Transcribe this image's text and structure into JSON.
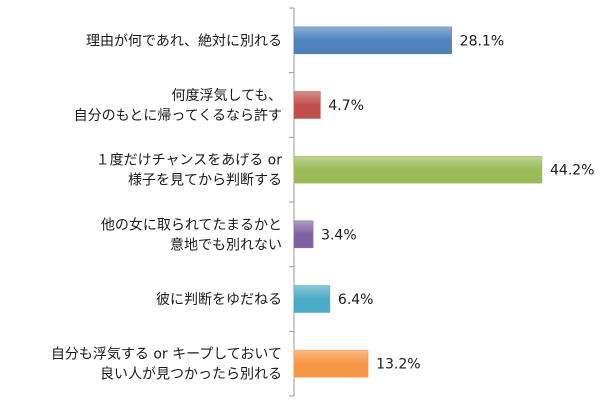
{
  "chart_data": {
    "type": "bar",
    "orientation": "horizontal",
    "title": "",
    "xlabel": "",
    "ylabel": "",
    "xlim": [
      0,
      50
    ],
    "grid": false,
    "legend": "none",
    "categories": [
      [
        "理由が何であれ、絶対に別れる"
      ],
      [
        "何度浮気しても、",
        "自分のもとに帰ってくるなら許す"
      ],
      [
        "１度だけチャンスをあげる or",
        "様子を見てから判断する"
      ],
      [
        "他の女に取られてたまるかと",
        "意地でも別れない"
      ],
      [
        "彼に判断をゆだねる"
      ],
      [
        "自分も浮気する or キープしておいて",
        "良い人が見つかったら別れる"
      ]
    ],
    "values": [
      28.1,
      4.7,
      44.2,
      3.4,
      6.4,
      13.2
    ],
    "value_labels": [
      "28.1%",
      "4.7%",
      "44.2%",
      "3.4%",
      "6.4%",
      "13.2%"
    ],
    "colors": [
      "#4f81bd",
      "#c0504d",
      "#9bbb59",
      "#8064a2",
      "#4bacc6",
      "#f79646"
    ]
  }
}
